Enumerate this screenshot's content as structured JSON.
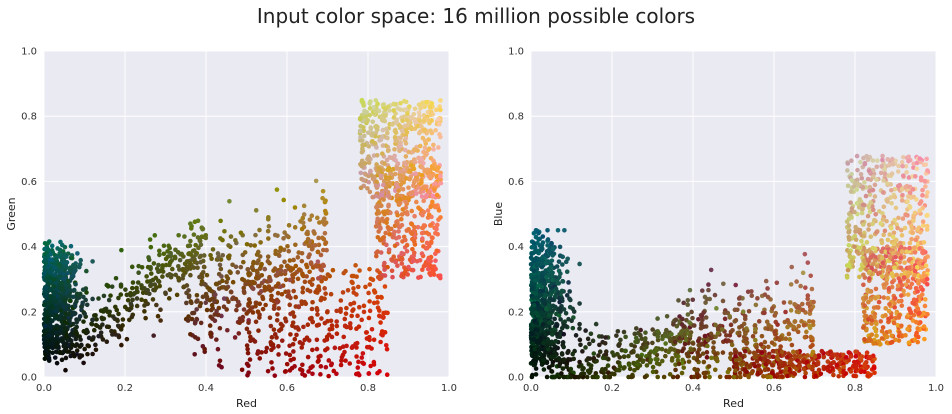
{
  "figure": {
    "suptitle": "Input color space: 16 million possible colors"
  },
  "chart_data": [
    {
      "type": "scatter",
      "title": "",
      "xlabel": "Red",
      "ylabel": "Green",
      "xlim": [
        0,
        1
      ],
      "ylim": [
        0,
        1
      ],
      "xticks": [
        "0.0",
        "0.2",
        "0.4",
        "0.6",
        "0.8",
        "1.0"
      ],
      "yticks": [
        "0.0",
        "0.2",
        "0.4",
        "0.6",
        "0.8",
        "1.0"
      ],
      "grid": true,
      "background": "#EAEAF2",
      "point_color": "RGB color of each sampled pixel",
      "series": [
        {
          "x": [
            0.0,
            0.01,
            0.02,
            0.03,
            0.04,
            0.05,
            0.06,
            0.08,
            0.1,
            0.12,
            0.14,
            0.16,
            0.18,
            0.2,
            0.22,
            0.24,
            0.26,
            0.28,
            0.3,
            0.32,
            0.34,
            0.36,
            0.38,
            0.4,
            0.42,
            0.44,
            0.46,
            0.48,
            0.5,
            0.52,
            0.54,
            0.56,
            0.58,
            0.6,
            0.62,
            0.64,
            0.66,
            0.68,
            0.7,
            0.72,
            0.74,
            0.76,
            0.78,
            0.8,
            0.82,
            0.84,
            0.86,
            0.88,
            0.9,
            0.92,
            0.94,
            0.96,
            0.98
          ],
          "y": [
            0.18,
            0.16,
            0.2,
            0.15,
            0.17,
            0.19,
            0.14,
            0.2,
            0.21,
            0.23,
            0.22,
            0.24,
            0.2,
            0.25,
            0.27,
            0.28,
            0.3,
            0.31,
            0.33,
            0.34,
            0.36,
            0.35,
            0.37,
            0.38,
            0.36,
            0.4,
            0.42,
            0.39,
            0.41,
            0.44,
            0.4,
            0.46,
            0.48,
            0.42,
            0.45,
            0.5,
            0.47,
            0.52,
            0.55,
            0.5,
            0.57,
            0.58,
            0.6,
            0.62,
            0.64,
            0.66,
            0.68,
            0.62,
            0.66,
            0.7,
            0.64,
            0.68,
            0.72
          ],
          "note": ""
        }
      ]
    },
    {
      "type": "scatter",
      "title": "",
      "xlabel": "Red",
      "ylabel": "Blue",
      "xlim": [
        0,
        1
      ],
      "ylim": [
        0,
        1
      ],
      "xticks": [
        "0.0",
        "0.2",
        "0.4",
        "0.6",
        "0.8",
        "1.0"
      ],
      "yticks": [
        "0.0",
        "0.2",
        "0.4",
        "0.6",
        "0.8",
        "1.0"
      ],
      "grid": true,
      "background": "#EAEAF2",
      "point_color": "RGB color of each sampled pixel",
      "series": [
        {
          "x": [
            0.0,
            0.01,
            0.02,
            0.03,
            0.04,
            0.06,
            0.08,
            0.1,
            0.12,
            0.14,
            0.16,
            0.18,
            0.2,
            0.22,
            0.26,
            0.3,
            0.34,
            0.38,
            0.42,
            0.46,
            0.5,
            0.54,
            0.58,
            0.62,
            0.66,
            0.7,
            0.74,
            0.78,
            0.8,
            0.82,
            0.84,
            0.86,
            0.88,
            0.9,
            0.92,
            0.94,
            0.96
          ],
          "y": [
            0.18,
            0.22,
            0.15,
            0.2,
            0.16,
            0.14,
            0.12,
            0.1,
            0.11,
            0.09,
            0.08,
            0.1,
            0.07,
            0.09,
            0.08,
            0.1,
            0.12,
            0.14,
            0.13,
            0.16,
            0.18,
            0.17,
            0.2,
            0.19,
            0.22,
            0.24,
            0.26,
            0.3,
            0.28,
            0.34,
            0.36,
            0.4,
            0.42,
            0.44,
            0.46,
            0.5,
            0.48
          ],
          "note": ""
        }
      ]
    }
  ]
}
